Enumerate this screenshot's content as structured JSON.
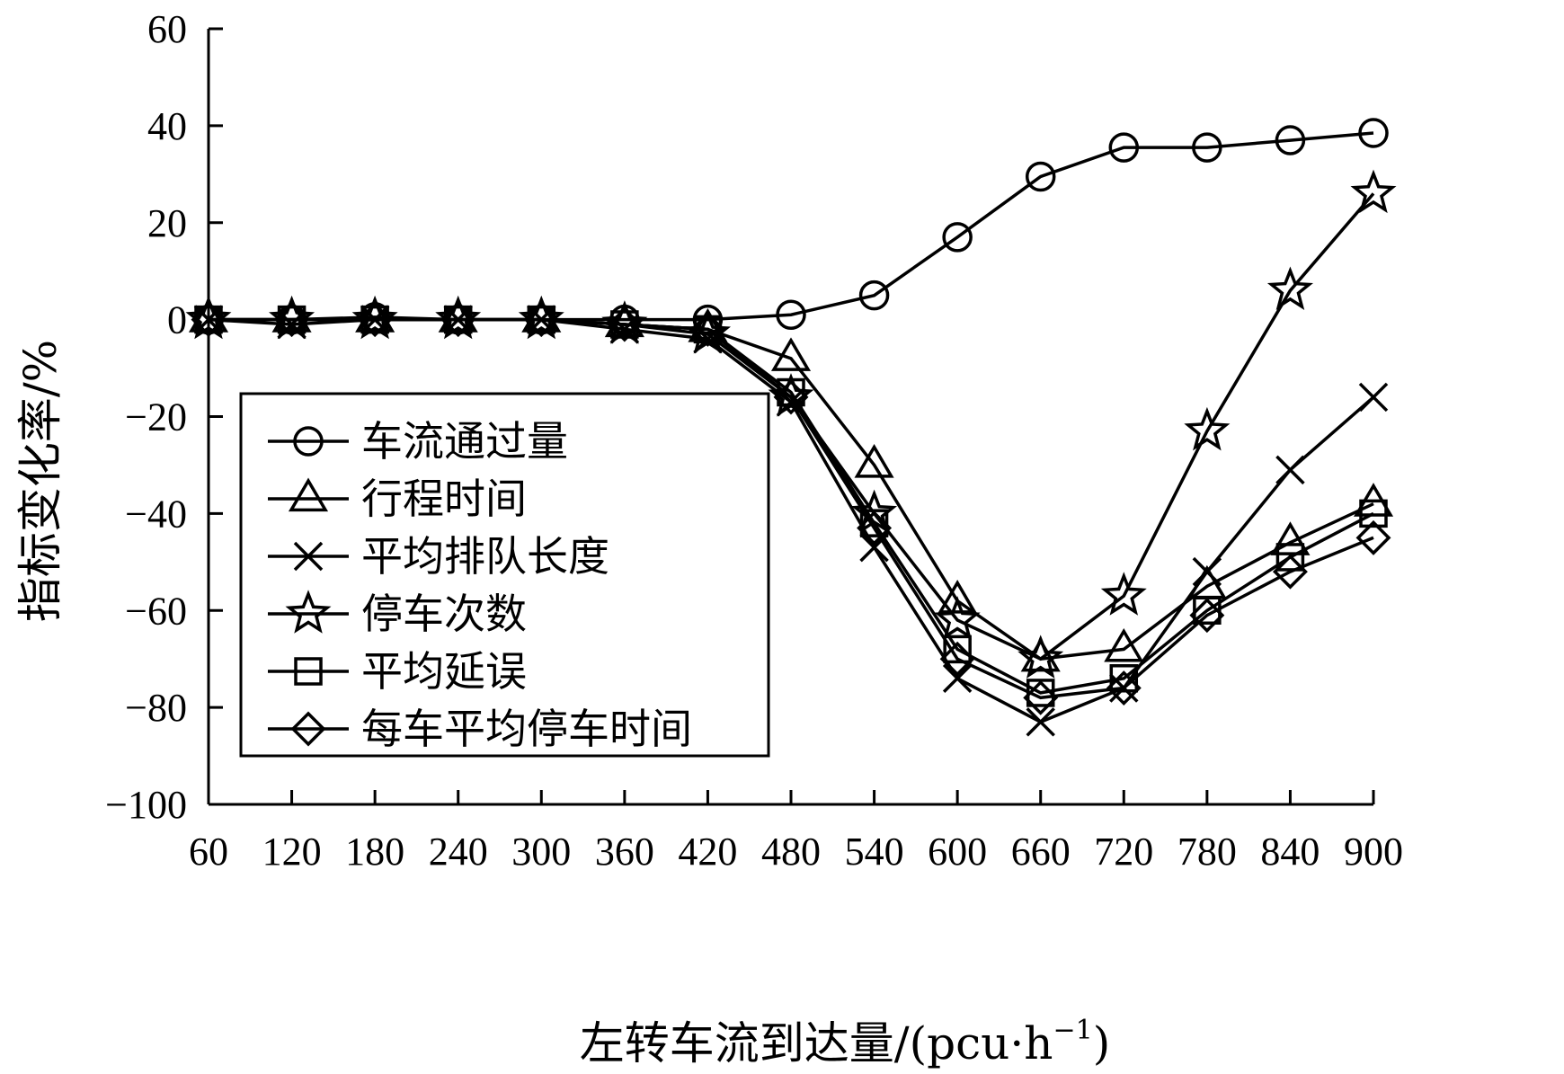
{
  "chart_data": {
    "type": "line",
    "title": "",
    "xlabel": "左转车流到达量/(pcu·h",
    "xlabel_sup": "−1",
    "xlabel_close": ")",
    "ylabel": "指标变化率/%",
    "x": [
      60,
      120,
      180,
      240,
      300,
      360,
      420,
      480,
      540,
      600,
      660,
      720,
      780,
      840,
      900
    ],
    "x_tick_labels": [
      "60",
      "120",
      "180",
      "240",
      "300",
      "360",
      "420",
      "480",
      "540",
      "600",
      "660",
      "720",
      "780",
      "840",
      "900"
    ],
    "y_tick_values": [
      60,
      40,
      20,
      0,
      -20,
      -40,
      -60,
      -80,
      -100
    ],
    "y_tick_labels": [
      "60",
      "40",
      "20",
      "0",
      "−20",
      "−40",
      "−60",
      "−80",
      "−100"
    ],
    "ylim": [
      -100,
      60
    ],
    "grid": false,
    "legend_position": "lower-left",
    "series": [
      {
        "name": "车流通过量",
        "marker": "circle",
        "values": [
          0,
          0,
          0.5,
          0,
          0,
          0,
          0,
          1,
          5,
          17,
          29.5,
          35.5,
          35.5,
          37,
          38.5
        ]
      },
      {
        "name": "行程时间",
        "marker": "triangle",
        "values": [
          0,
          0,
          0,
          0,
          0,
          -1,
          -2,
          -8,
          -30,
          -58,
          -70,
          -68,
          -55,
          -46,
          -38
        ]
      },
      {
        "name": "平均排队长度",
        "marker": "cross",
        "values": [
          0,
          -1,
          0,
          0,
          0,
          -2,
          -4,
          -17,
          -47,
          -74,
          -83,
          -76,
          -52,
          -31,
          -16
        ]
      },
      {
        "name": "停车次数",
        "marker": "star",
        "values": [
          0,
          0,
          0,
          0,
          0,
          -1,
          -3,
          -16,
          -40,
          -62,
          -70,
          -57,
          -23,
          6,
          26
        ]
      },
      {
        "name": "平均延误",
        "marker": "square",
        "values": [
          0,
          0,
          0,
          0,
          0,
          -1,
          -2,
          -15,
          -42,
          -68,
          -77,
          -74,
          -60,
          -49,
          -40
        ]
      },
      {
        "name": "每车平均停车时间",
        "marker": "diamond",
        "values": [
          0,
          0,
          0,
          0,
          0,
          -1,
          -2,
          -16,
          -43,
          -70,
          -78,
          -76,
          -61,
          -52,
          -45
        ]
      }
    ]
  }
}
